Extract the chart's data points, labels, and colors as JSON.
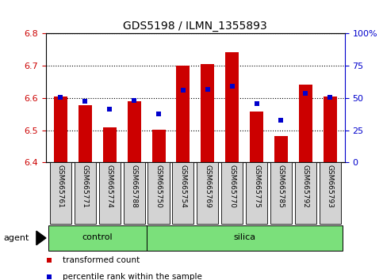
{
  "title": "GDS5198 / ILMN_1355893",
  "samples": [
    "GSM665761",
    "GSM665771",
    "GSM665774",
    "GSM665788",
    "GSM665750",
    "GSM665754",
    "GSM665769",
    "GSM665770",
    "GSM665775",
    "GSM665785",
    "GSM665792",
    "GSM665793"
  ],
  "groups": [
    "control",
    "control",
    "control",
    "control",
    "silica",
    "silica",
    "silica",
    "silica",
    "silica",
    "silica",
    "silica",
    "silica"
  ],
  "red_values": [
    6.604,
    6.578,
    6.508,
    6.59,
    6.501,
    6.7,
    6.706,
    6.742,
    6.558,
    6.482,
    6.642,
    6.604
  ],
  "blue_values": [
    6.602,
    6.589,
    6.566,
    6.592,
    6.55,
    6.625,
    6.627,
    6.637,
    6.582,
    6.53,
    6.614,
    6.602
  ],
  "bar_bottom": 6.4,
  "ylim": [
    6.4,
    6.8
  ],
  "yticks": [
    6.4,
    6.5,
    6.6,
    6.7,
    6.8
  ],
  "right_yticks": [
    0,
    25,
    50,
    75,
    100
  ],
  "right_ytick_labels": [
    "0",
    "25",
    "50",
    "75",
    "100%"
  ],
  "red_color": "#cc0000",
  "blue_color": "#0000cc",
  "bar_width": 0.55,
  "control_color": "#7be07b",
  "agent_label": "agent",
  "control_label": "control",
  "silica_label": "silica",
  "legend_red": "transformed count",
  "legend_blue": "percentile rank within the sample",
  "tick_label_bg": "#d3d3d3",
  "n_control": 4,
  "n_total": 12
}
